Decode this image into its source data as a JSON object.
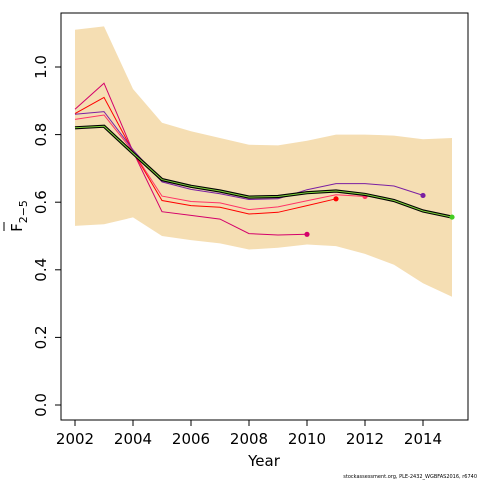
{
  "chart_data": {
    "type": "line",
    "title": "",
    "xlabel": "Year",
    "ylabel_main": "F",
    "ylabel_sub": "2−5",
    "xlim": [
      2002,
      2015
    ],
    "ylim": [
      0,
      1.15
    ],
    "x_ticks": [
      2002,
      2004,
      2006,
      2008,
      2010,
      2012,
      2014
    ],
    "y_ticks": [
      0.0,
      0.2,
      0.4,
      0.6,
      0.8,
      1.0
    ],
    "x_tick_labels": [
      "2002",
      "2004",
      "2006",
      "2008",
      "2010",
      "2012",
      "2014"
    ],
    "y_tick_labels": [
      "0.0",
      "0.2",
      "0.4",
      "0.6",
      "0.8",
      "1.0"
    ],
    "band": {
      "color": "#f5deb3",
      "x": [
        2002,
        2003,
        2004,
        2005,
        2006,
        2007,
        2008,
        2009,
        2010,
        2011,
        2012,
        2013,
        2014,
        2015
      ],
      "upper": [
        1.11,
        1.12,
        0.935,
        0.835,
        0.81,
        0.79,
        0.77,
        0.768,
        0.782,
        0.8,
        0.8,
        0.797,
        0.786,
        0.79
      ],
      "lower": [
        0.53,
        0.535,
        0.555,
        0.5,
        0.488,
        0.478,
        0.46,
        0.465,
        0.475,
        0.47,
        0.447,
        0.415,
        0.36,
        0.32
      ]
    },
    "series": [
      {
        "color": "#d4006a",
        "x": [
          2002,
          2003,
          2004,
          2005,
          2006,
          2007,
          2008,
          2009,
          2010
        ],
        "values": [
          0.875,
          0.952,
          0.75,
          0.572,
          0.561,
          0.55,
          0.507,
          0.503,
          0.505
        ],
        "end_marker": true
      },
      {
        "color": "#ff0000",
        "x": [
          2002,
          2003,
          2004,
          2005,
          2006,
          2007,
          2008,
          2009,
          2010,
          2011
        ],
        "values": [
          0.862,
          0.91,
          0.75,
          0.605,
          0.59,
          0.585,
          0.565,
          0.57,
          0.59,
          0.61
        ],
        "end_marker": true
      },
      {
        "color": "#ff3366",
        "x": [
          2002,
          2003,
          2004,
          2005,
          2006,
          2007,
          2008,
          2009,
          2010,
          2011,
          2012
        ],
        "values": [
          0.845,
          0.858,
          0.75,
          0.618,
          0.602,
          0.598,
          0.578,
          0.586,
          0.604,
          0.622,
          0.617
        ],
        "end_marker": true
      },
      {
        "color": "#7a1fa2",
        "x": [
          2002,
          2003,
          2004,
          2005,
          2006,
          2007,
          2008,
          2009,
          2010,
          2011,
          2012,
          2013,
          2014
        ],
        "values": [
          0.86,
          0.868,
          0.755,
          0.66,
          0.638,
          0.625,
          0.608,
          0.61,
          0.637,
          0.655,
          0.655,
          0.648,
          0.62
        ],
        "end_marker": true
      }
    ],
    "main_series": {
      "outer_color": "#000000",
      "inner_color": "#7fd13b",
      "end_color": "#44cc22",
      "x": [
        2002,
        2003,
        2004,
        2005,
        2006,
        2007,
        2008,
        2009,
        2010,
        2011,
        2012,
        2013,
        2014,
        2015
      ],
      "values": [
        0.82,
        0.825,
        0.745,
        0.667,
        0.647,
        0.633,
        0.615,
        0.617,
        0.628,
        0.633,
        0.623,
        0.605,
        0.574,
        0.556
      ]
    },
    "grid": false,
    "footnote": "stockassessment.org, PLE-2432_WGBFAS2016, r6740"
  }
}
